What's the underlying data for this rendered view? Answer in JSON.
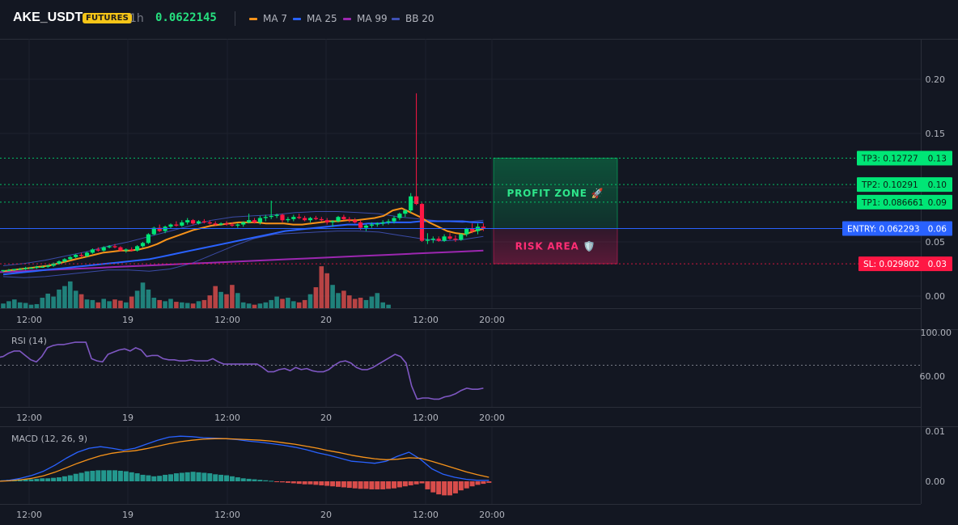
{
  "header": {
    "symbol": "AKE_USDT",
    "badge": "FUTURES",
    "timeframe": "1h",
    "price": "0.0622145",
    "legend": [
      {
        "name": "MA 7",
        "color": "#f7931a"
      },
      {
        "name": "MA 25",
        "color": "#2962ff"
      },
      {
        "name": "MA 99",
        "color": "#9c27b0"
      },
      {
        "name": "BB 20",
        "color": "#3f51b5"
      }
    ]
  },
  "colors": {
    "up": "#26a69a",
    "down": "#ef5350",
    "bull_candle": "#00e676",
    "bear_candle": "#ff1744",
    "bg": "#131722",
    "grid": "#1e222d"
  },
  "chart_data": [
    {
      "type": "candlestick",
      "title": "AKE_USDT",
      "x_ticks": [
        "12:00",
        "19",
        "12:00",
        "20",
        "12:00",
        "20:00"
      ],
      "y_ticks": [
        "0.20",
        "0.15",
        "0.10",
        "0.05",
        "0.00"
      ],
      "ylim": [
        -0.012,
        0.235
      ],
      "candles": [
        [
          0.023,
          0.024,
          0.022,
          0.024
        ],
        [
          0.024,
          0.025,
          0.023,
          0.024
        ],
        [
          0.024,
          0.025,
          0.023,
          0.025
        ],
        [
          0.025,
          0.026,
          0.024,
          0.025
        ],
        [
          0.025,
          0.027,
          0.024,
          0.026
        ],
        [
          0.026,
          0.027,
          0.025,
          0.026
        ],
        [
          0.026,
          0.028,
          0.025,
          0.027
        ],
        [
          0.027,
          0.028,
          0.026,
          0.027
        ],
        [
          0.027,
          0.029,
          0.026,
          0.028
        ],
        [
          0.028,
          0.031,
          0.027,
          0.03
        ],
        [
          0.03,
          0.033,
          0.029,
          0.032
        ],
        [
          0.032,
          0.035,
          0.031,
          0.034
        ],
        [
          0.034,
          0.037,
          0.033,
          0.036
        ],
        [
          0.036,
          0.039,
          0.035,
          0.038
        ],
        [
          0.038,
          0.04,
          0.036,
          0.037
        ],
        [
          0.037,
          0.041,
          0.036,
          0.04
        ],
        [
          0.04,
          0.044,
          0.039,
          0.043
        ],
        [
          0.043,
          0.045,
          0.041,
          0.042
        ],
        [
          0.042,
          0.046,
          0.041,
          0.045
        ],
        [
          0.045,
          0.047,
          0.044,
          0.046
        ],
        [
          0.046,
          0.048,
          0.044,
          0.045
        ],
        [
          0.045,
          0.046,
          0.041,
          0.042
        ],
        [
          0.042,
          0.044,
          0.04,
          0.043
        ],
        [
          0.043,
          0.045,
          0.041,
          0.042
        ],
        [
          0.042,
          0.047,
          0.041,
          0.046
        ],
        [
          0.046,
          0.05,
          0.045,
          0.049
        ],
        [
          0.049,
          0.058,
          0.048,
          0.057
        ],
        [
          0.057,
          0.064,
          0.056,
          0.063
        ],
        [
          0.063,
          0.066,
          0.059,
          0.06
        ],
        [
          0.06,
          0.065,
          0.058,
          0.064
        ],
        [
          0.064,
          0.067,
          0.062,
          0.066
        ],
        [
          0.066,
          0.069,
          0.064,
          0.065
        ],
        [
          0.065,
          0.07,
          0.064,
          0.068
        ],
        [
          0.068,
          0.072,
          0.066,
          0.07
        ],
        [
          0.07,
          0.071,
          0.066,
          0.067
        ],
        [
          0.067,
          0.07,
          0.066,
          0.069
        ],
        [
          0.069,
          0.071,
          0.067,
          0.068
        ],
        [
          0.068,
          0.07,
          0.066,
          0.067
        ],
        [
          0.067,
          0.069,
          0.065,
          0.066
        ],
        [
          0.066,
          0.068,
          0.065,
          0.067
        ],
        [
          0.067,
          0.069,
          0.065,
          0.066
        ],
        [
          0.066,
          0.068,
          0.064,
          0.065
        ],
        [
          0.065,
          0.067,
          0.063,
          0.066
        ],
        [
          0.066,
          0.069,
          0.064,
          0.068
        ],
        [
          0.068,
          0.076,
          0.067,
          0.07
        ],
        [
          0.07,
          0.072,
          0.067,
          0.068
        ],
        [
          0.068,
          0.074,
          0.066,
          0.072
        ],
        [
          0.072,
          0.075,
          0.069,
          0.073
        ],
        [
          0.073,
          0.088,
          0.071,
          0.074
        ],
        [
          0.074,
          0.076,
          0.072,
          0.075
        ],
        [
          0.075,
          0.076,
          0.068,
          0.07
        ],
        [
          0.07,
          0.073,
          0.068,
          0.071
        ],
        [
          0.071,
          0.075,
          0.069,
          0.073
        ],
        [
          0.073,
          0.076,
          0.071,
          0.072
        ],
        [
          0.072,
          0.074,
          0.069,
          0.07
        ],
        [
          0.07,
          0.073,
          0.068,
          0.072
        ],
        [
          0.072,
          0.074,
          0.07,
          0.071
        ],
        [
          0.071,
          0.073,
          0.069,
          0.07
        ],
        [
          0.07,
          0.072,
          0.066,
          0.068
        ],
        [
          0.068,
          0.07,
          0.064,
          0.069
        ],
        [
          0.069,
          0.074,
          0.068,
          0.073
        ],
        [
          0.073,
          0.075,
          0.07,
          0.071
        ],
        [
          0.071,
          0.073,
          0.068,
          0.07
        ],
        [
          0.07,
          0.072,
          0.067,
          0.068
        ],
        [
          0.068,
          0.07,
          0.061,
          0.063
        ],
        [
          0.063,
          0.066,
          0.06,
          0.065
        ],
        [
          0.065,
          0.068,
          0.063,
          0.066
        ],
        [
          0.066,
          0.068,
          0.064,
          0.067
        ],
        [
          0.067,
          0.07,
          0.065,
          0.068
        ],
        [
          0.068,
          0.071,
          0.066,
          0.069
        ],
        [
          0.069,
          0.074,
          0.067,
          0.072
        ],
        [
          0.072,
          0.077,
          0.07,
          0.076
        ],
        [
          0.076,
          0.08,
          0.073,
          0.079
        ],
        [
          0.079,
          0.095,
          0.077,
          0.092
        ],
        [
          0.092,
          0.187,
          0.084,
          0.085
        ],
        [
          0.085,
          0.086,
          0.05,
          0.051
        ],
        [
          0.051,
          0.058,
          0.048,
          0.052
        ],
        [
          0.052,
          0.055,
          0.049,
          0.053
        ],
        [
          0.053,
          0.055,
          0.05,
          0.051
        ],
        [
          0.051,
          0.057,
          0.05,
          0.055
        ],
        [
          0.055,
          0.058,
          0.052,
          0.053
        ],
        [
          0.053,
          0.056,
          0.05,
          0.052
        ],
        [
          0.052,
          0.058,
          0.051,
          0.057
        ],
        [
          0.057,
          0.063,
          0.055,
          0.062
        ],
        [
          0.062,
          0.067,
          0.058,
          0.06
        ],
        [
          0.06,
          0.067,
          0.057,
          0.064
        ],
        [
          0.064,
          0.067,
          0.06,
          0.062
        ]
      ],
      "volume": [
        8,
        12,
        15,
        10,
        9,
        6,
        7,
        18,
        25,
        20,
        32,
        38,
        46,
        30,
        24,
        15,
        14,
        10,
        16,
        12,
        15,
        13,
        10,
        20,
        30,
        44,
        32,
        18,
        14,
        12,
        16,
        11,
        10,
        9,
        8,
        12,
        14,
        22,
        38,
        28,
        24,
        40,
        26,
        10,
        8,
        6,
        8,
        10,
        14,
        20,
        16,
        18,
        12,
        10,
        14,
        24,
        36,
        72,
        60,
        40,
        26,
        30,
        22,
        16,
        18,
        14,
        20,
        26,
        10,
        6
      ],
      "ma7": [
        0.023,
        0.024,
        0.025,
        0.026,
        0.027,
        0.028,
        0.03,
        0.032,
        0.034,
        0.036,
        0.038,
        0.04,
        0.041,
        0.042,
        0.042,
        0.043,
        0.045,
        0.048,
        0.052,
        0.055,
        0.058,
        0.061,
        0.063,
        0.065,
        0.066,
        0.067,
        0.068,
        0.068,
        0.068,
        0.067,
        0.067,
        0.067,
        0.066,
        0.066,
        0.067,
        0.068,
        0.069,
        0.069,
        0.07,
        0.07,
        0.071,
        0.072,
        0.074,
        0.079,
        0.081,
        0.077,
        0.073,
        0.068,
        0.064,
        0.06,
        0.058,
        0.057,
        0.06,
        0.062
      ],
      "ma25": [
        0.02,
        0.021,
        0.022,
        0.023,
        0.024,
        0.025,
        0.026,
        0.027,
        0.028,
        0.029,
        0.03,
        0.031,
        0.032,
        0.033,
        0.034,
        0.036,
        0.038,
        0.04,
        0.042,
        0.044,
        0.046,
        0.048,
        0.05,
        0.052,
        0.054,
        0.056,
        0.058,
        0.06,
        0.061,
        0.062,
        0.063,
        0.064,
        0.065,
        0.066,
        0.066,
        0.067,
        0.067,
        0.068,
        0.068,
        0.068,
        0.069,
        0.069,
        0.069,
        0.069,
        0.069,
        0.068,
        0.068
      ],
      "ma99": [
        0.022,
        0.023,
        0.024,
        0.025,
        0.026,
        0.027,
        0.028,
        0.029,
        0.03,
        0.031,
        0.032,
        0.033,
        0.034,
        0.035,
        0.036,
        0.037,
        0.038,
        0.039,
        0.04,
        0.041,
        0.042
      ],
      "bb_upper": [
        0.028,
        0.03,
        0.033,
        0.037,
        0.041,
        0.046,
        0.05,
        0.055,
        0.06,
        0.065,
        0.07,
        0.073,
        0.074,
        0.075,
        0.077,
        0.078,
        0.078,
        0.077,
        0.076,
        0.073,
        0.071,
        0.069,
        0.068,
        0.07
      ],
      "bb_lower": [
        0.018,
        0.017,
        0.018,
        0.02,
        0.022,
        0.024,
        0.024,
        0.023,
        0.025,
        0.03,
        0.038,
        0.046,
        0.053,
        0.057,
        0.058,
        0.059,
        0.06,
        0.06,
        0.059,
        0.056,
        0.053,
        0.051,
        0.052,
        0.055
      ]
    },
    {
      "type": "line",
      "title": "RSI (14)",
      "y_ticks": [
        "100.00",
        "60.00"
      ],
      "ylim": [
        30,
        100
      ],
      "values": [
        77,
        78,
        81,
        83,
        83,
        79,
        75,
        73,
        78,
        86,
        88,
        89,
        89,
        90,
        91,
        91,
        91,
        76,
        74,
        73,
        80,
        82,
        84,
        85,
        83,
        86,
        84,
        78,
        79,
        79,
        76,
        75,
        75,
        74,
        74,
        75,
        74,
        74,
        74,
        76,
        73,
        71,
        71,
        71,
        71,
        71,
        71,
        71,
        68,
        64,
        64,
        66,
        67,
        65,
        68,
        66,
        67,
        65,
        64,
        64,
        66,
        70,
        73,
        74,
        72,
        68,
        66,
        66,
        68,
        71,
        74,
        77,
        80,
        78,
        72,
        51,
        39,
        40,
        40,
        39,
        39,
        41,
        42,
        44,
        47,
        49,
        48,
        48,
        49
      ]
    },
    {
      "type": "line",
      "title": "MACD (12, 26, 9)",
      "y_ticks": [
        "0.01",
        "0.00"
      ],
      "ylim": [
        -0.003,
        0.011
      ],
      "macd": [
        0.0,
        0.0002,
        0.0006,
        0.0012,
        0.002,
        0.0032,
        0.0046,
        0.0058,
        0.0066,
        0.0069,
        0.0066,
        0.0062,
        0.0066,
        0.0074,
        0.0082,
        0.0088,
        0.009,
        0.0089,
        0.0087,
        0.0086,
        0.0085,
        0.0083,
        0.008,
        0.0078,
        0.0075,
        0.0072,
        0.0068,
        0.0063,
        0.0057,
        0.0052,
        0.0046,
        0.004,
        0.0038,
        0.0036,
        0.004,
        0.005,
        0.0058,
        0.0044,
        0.0025,
        0.0014,
        0.0008,
        0.0004,
        0.0002,
        0.0002
      ],
      "signal": [
        0.0,
        0.0001,
        0.0003,
        0.0006,
        0.0011,
        0.0018,
        0.0027,
        0.0036,
        0.0044,
        0.0051,
        0.0056,
        0.0059,
        0.0061,
        0.0065,
        0.007,
        0.0075,
        0.0079,
        0.0082,
        0.0084,
        0.0085,
        0.0085,
        0.0084,
        0.0083,
        0.0082,
        0.008,
        0.0077,
        0.0074,
        0.007,
        0.0066,
        0.0061,
        0.0057,
        0.0052,
        0.0048,
        0.0045,
        0.0043,
        0.0044,
        0.0047,
        0.0046,
        0.004,
        0.0033,
        0.0026,
        0.0019,
        0.0013,
        0.0008
      ],
      "histogram": [
        0.0002,
        0.0002,
        0.0003,
        0.0003,
        0.0004,
        0.0004,
        0.0004,
        0.0005,
        0.0006,
        0.0006,
        0.0007,
        0.0008,
        0.001,
        0.0012,
        0.0015,
        0.0017,
        0.002,
        0.0021,
        0.0022,
        0.0022,
        0.0022,
        0.0022,
        0.0021,
        0.002,
        0.0018,
        0.0016,
        0.0013,
        0.0012,
        0.001,
        0.0011,
        0.0013,
        0.0014,
        0.0016,
        0.0017,
        0.0018,
        0.0019,
        0.0018,
        0.0017,
        0.0016,
        0.0014,
        0.0013,
        0.0012,
        0.001,
        0.0008,
        0.0006,
        0.0005,
        0.0004,
        0.0003,
        0.0002,
        0.0001,
        -0.0001,
        -0.0002,
        -0.0003,
        -0.0004,
        -0.0005,
        -0.0006,
        -0.0006,
        -0.0007,
        -0.0008,
        -0.0009,
        -0.001,
        -0.0011,
        -0.0012,
        -0.0013,
        -0.0014,
        -0.0015,
        -0.0015,
        -0.0016,
        -0.0016,
        -0.0016,
        -0.0015,
        -0.0014,
        -0.0012,
        -0.001,
        -0.0008,
        -0.0006,
        -0.0004,
        -0.0016,
        -0.0022,
        -0.0026,
        -0.0028,
        -0.0028,
        -0.0024,
        -0.0018,
        -0.0014,
        -0.001,
        -0.0007,
        -0.0005,
        -0.0003
      ]
    }
  ],
  "levels": [
    {
      "id": "tp3",
      "value": 0.12727,
      "label": "TP3: 0.12727",
      "tick": "0.13",
      "color": "#00e676",
      "text_color": "#0b1e13"
    },
    {
      "id": "tp2",
      "value": 0.10291,
      "label": "TP2: 0.10291",
      "tick": "0.10",
      "color": "#00e676",
      "text_color": "#0b1e13"
    },
    {
      "id": "tp1",
      "value": 0.086661,
      "label": "TP1: 0.086661",
      "tick": "0.09",
      "color": "#00e676",
      "text_color": "#0b1e13"
    },
    {
      "id": "entry",
      "value": 0.062293,
      "label": "ENTRY: 0.062293",
      "tick": "0.06",
      "color": "#2962ff",
      "text_color": "#ffffff"
    },
    {
      "id": "sl",
      "value": 0.029802,
      "label": "SL: 0.029802",
      "tick": "0.03",
      "color": "#ff1744",
      "text_color": "#ffffff"
    }
  ],
  "zones": {
    "profit": {
      "label": "PROFIT ZONE 🚀",
      "color": "#00e676"
    },
    "risk": {
      "label": "RISK AREA 🛡️",
      "color": "#ff1f6a"
    }
  }
}
